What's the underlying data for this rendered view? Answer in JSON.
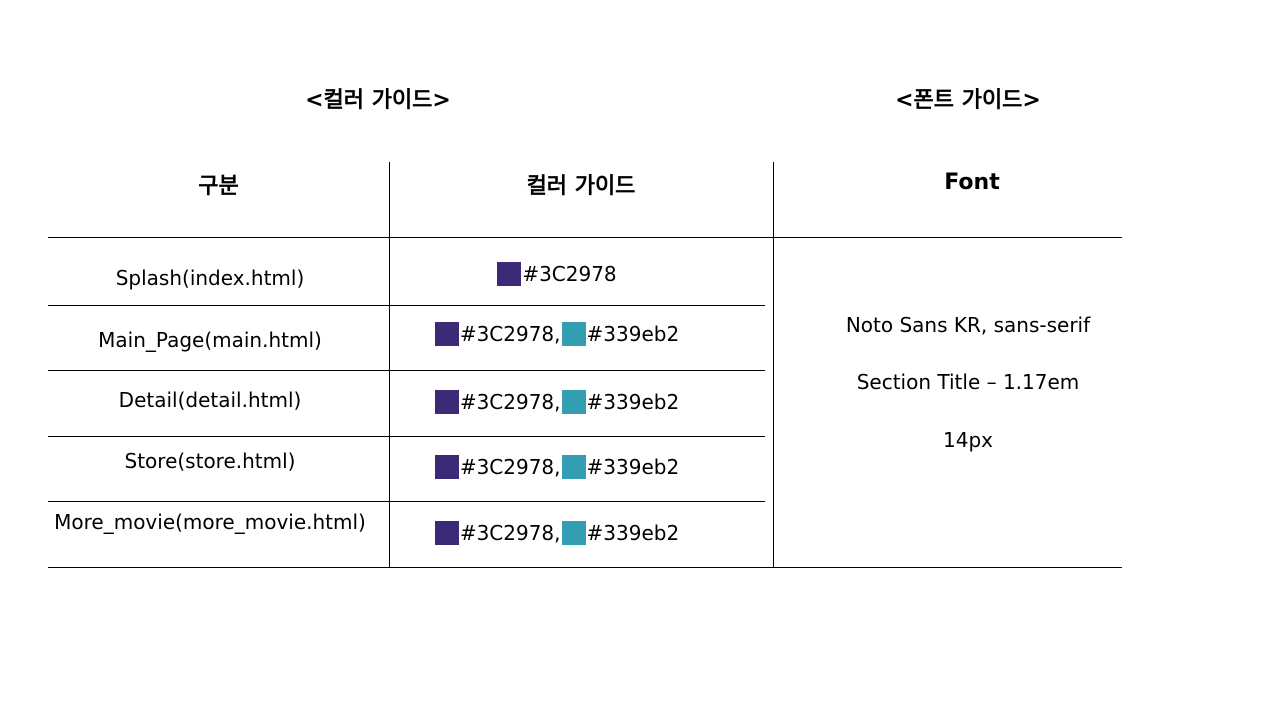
{
  "titles": {
    "color_guide": "<컬러 가이드>",
    "font_guide": "<폰트 가이드>"
  },
  "table": {
    "headers": [
      "구분",
      "컬러 가이드",
      "Font"
    ],
    "colors": {
      "primary": "#3C2978",
      "secondary": "#339eb2"
    },
    "rows": [
      {
        "page": "Splash(index.html)",
        "swatches": [
          "#3C2978"
        ]
      },
      {
        "page": "Main_Page(main.html)",
        "swatches": [
          "#3C2978,",
          "#339eb2"
        ]
      },
      {
        "page": "Detail(detail.html)",
        "swatches": [
          "#3C2978,",
          "#339eb2"
        ]
      },
      {
        "page": "Store(store.html)",
        "swatches": [
          "#3C2978,",
          "#339eb2"
        ]
      },
      {
        "page": "More_movie(more_movie.html)",
        "swatches": [
          "#3C2978,",
          "#339eb2"
        ]
      }
    ],
    "font_info": [
      "Noto Sans KR, sans-serif",
      "Section Title – 1.17em",
      "14px"
    ]
  }
}
